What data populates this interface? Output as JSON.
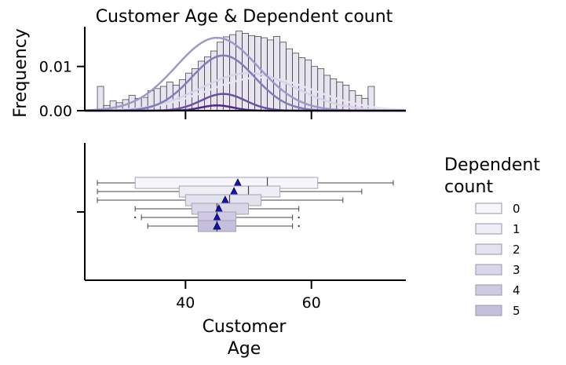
{
  "chart_data": [
    {
      "type": "histogram",
      "title": "Customer Age & Dependent count",
      "ylabel": "Frequency",
      "xlim": [
        24,
        75
      ],
      "ylim": [
        0,
        0.019
      ],
      "x_ticks": [
        40,
        60
      ],
      "y_ticks": [
        0.0,
        0.01
      ],
      "y_tick_labels": [
        "0.00",
        "0.01"
      ],
      "x_tick_labels_visible": false,
      "bins": {
        "start": 26,
        "width": 1,
        "heights": [
          0.0055,
          0.0012,
          0.0022,
          0.0018,
          0.0025,
          0.0035,
          0.0028,
          0.003,
          0.0045,
          0.005,
          0.0055,
          0.0065,
          0.0058,
          0.007,
          0.0085,
          0.0095,
          0.0112,
          0.0122,
          0.0135,
          0.0155,
          0.0167,
          0.0172,
          0.018,
          0.0175,
          0.017,
          0.0168,
          0.0165,
          0.016,
          0.0168,
          0.0155,
          0.014,
          0.013,
          0.012,
          0.0115,
          0.01,
          0.0095,
          0.008,
          0.0072,
          0.0065,
          0.0058,
          0.0045,
          0.0035,
          0.0028,
          0.0055
        ]
      },
      "kde": [
        {
          "name": "0",
          "peak_x": 52,
          "peak_y": 0.0075,
          "sd": 8.5
        },
        {
          "name": "1",
          "peak_x": 50,
          "peak_y": 0.0085,
          "sd": 7.5
        },
        {
          "name": "2",
          "peak_x": 45,
          "peak_y": 0.0165,
          "sd": 6.5
        },
        {
          "name": "3",
          "peak_x": 46,
          "peak_y": 0.0125,
          "sd": 5.0
        },
        {
          "name": "4",
          "peak_x": 46,
          "peak_y": 0.0038,
          "sd": 3.5
        },
        {
          "name": "5",
          "peak_x": 45,
          "peak_y": 0.0012,
          "sd": 2.5
        }
      ],
      "spines": [
        "left",
        "bottom"
      ]
    },
    {
      "type": "box",
      "xlabel": "Customer\nAge",
      "xlabel_lines": [
        "Customer",
        "Age"
      ],
      "xlim": [
        24,
        75
      ],
      "x_ticks": [
        40,
        60
      ],
      "x_tick_labels": [
        "40",
        "60"
      ],
      "legend": {
        "title_lines": [
          "Dependent",
          "count"
        ],
        "placement": "right"
      },
      "colors": [
        "#f7f7fb",
        "#efeef6",
        "#e3e2ef",
        "#d9d6ea",
        "#cfc9e3",
        "#c6bedd"
      ],
      "mean_marker_color": "#1010cc",
      "series": [
        {
          "name": "0",
          "whisker_low": 26,
          "q1": 32,
          "median": 53,
          "q3": 61,
          "whisker_high": 73,
          "mean": 48.3,
          "outliers": []
        },
        {
          "name": "1",
          "whisker_low": 26,
          "q1": 39,
          "median": 50,
          "q3": 55,
          "whisker_high": 68,
          "mean": 47.7,
          "outliers": []
        },
        {
          "name": "2",
          "whisker_low": 26,
          "q1": 40,
          "median": 47,
          "q3": 52,
          "whisker_high": 65,
          "mean": 46.3,
          "outliers": []
        },
        {
          "name": "3",
          "whisker_low": 32,
          "q1": 41,
          "median": 45,
          "q3": 50,
          "whisker_high": 58,
          "mean": 45.3,
          "outliers": []
        },
        {
          "name": "4",
          "whisker_low": 33,
          "q1": 42,
          "median": 45,
          "q3": 48,
          "whisker_high": 57,
          "mean": 45.0,
          "outliers": [
            32,
            58
          ]
        },
        {
          "name": "5",
          "whisker_low": 34,
          "q1": 42,
          "median": 45,
          "q3": 48,
          "whisker_high": 57,
          "mean": 45.0,
          "outliers": [
            58
          ]
        }
      ]
    }
  ]
}
